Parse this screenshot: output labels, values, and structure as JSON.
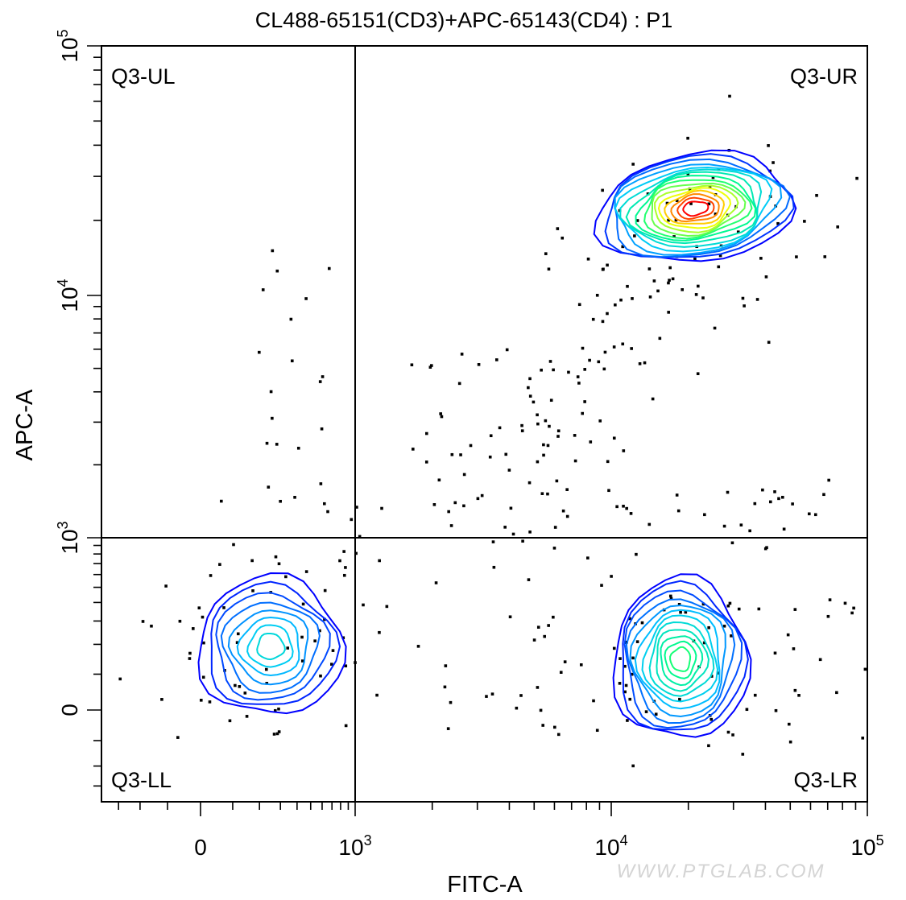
{
  "chart_data": {
    "type": "scatter",
    "title": "CL488-65151(CD3)+APC-65143(CD4) : P1",
    "xlabel": "FITC-A",
    "ylabel": "APC-A",
    "x_scale": "biexponential",
    "y_scale": "biexponential",
    "xlim": [
      -400,
      100000
    ],
    "ylim": [
      -400,
      100000
    ],
    "x_ticks": [
      {
        "base": "0",
        "exp": ""
      },
      {
        "base": "10",
        "exp": "3"
      },
      {
        "base": "10",
        "exp": "4"
      },
      {
        "base": "10",
        "exp": "5"
      }
    ],
    "y_ticks": [
      {
        "base": "0",
        "exp": ""
      },
      {
        "base": "10",
        "exp": "3"
      },
      {
        "base": "10",
        "exp": "4"
      },
      {
        "base": "10",
        "exp": "5"
      }
    ],
    "gate": {
      "x": 1000,
      "y": 1000
    },
    "quadrants": [
      "Q3-UL",
      "Q3-UR",
      "Q3-LL",
      "Q3-LR"
    ],
    "populations": [
      {
        "quadrant": "Q3-UL",
        "center": null
      },
      {
        "quadrant": "Q3-UR",
        "center": [
          25000,
          22000
        ]
      },
      {
        "quadrant": "Q3-LL",
        "center": [
          250,
          180
        ]
      },
      {
        "quadrant": "Q3-LR",
        "center": [
          18000,
          160
        ]
      }
    ],
    "color_scale": [
      "#0000ff",
      "#00c8ff",
      "#00ff80",
      "#ffff00",
      "#ff0000"
    ],
    "grid": false,
    "legend": "none"
  },
  "watermark": "WWW.PTGLAB.COM"
}
